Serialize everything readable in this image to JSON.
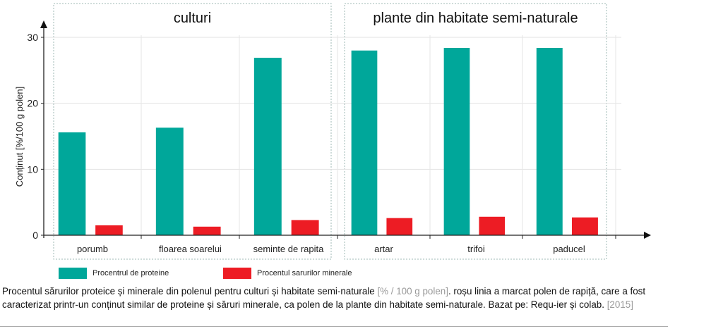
{
  "chart_data": {
    "type": "bar",
    "ylabel": "Conținut [%/100 g polen]",
    "ylim": [
      0,
      30
    ],
    "yticks": [
      0,
      10,
      20,
      30
    ],
    "grid": true,
    "legend_position": "bottom",
    "groups": [
      {
        "title": "culturi",
        "categories": [
          "porumb",
          "floarea soarelui",
          "seminte de rapita"
        ]
      },
      {
        "title": "plante din habitate semi-naturale",
        "categories": [
          "artar",
          "trifoi",
          "paducel"
        ]
      }
    ],
    "categories": [
      "porumb",
      "floarea soarelui",
      "seminte de rapita",
      "artar",
      "trifoi",
      "paducel"
    ],
    "series": [
      {
        "name": "Procentrul de proteine",
        "color": "#00a79a",
        "values": [
          15.6,
          16.3,
          26.9,
          28.0,
          28.4,
          28.4
        ]
      },
      {
        "name": "Procentul sarurilor minerale",
        "color": "#ed1c24",
        "values": [
          1.5,
          1.3,
          2.3,
          2.6,
          2.8,
          2.7
        ]
      }
    ]
  },
  "caption": {
    "text1": "Procentul sărurilor proteice și minerale din polenul pentru culturi și habitate semi-naturale ",
    "ref1": "[% / 100 g polen]",
    "text2": ". roșu linia a marcat polen de rapiță, care a fost caracterizat printr-un conținut similar de proteine și săruri minerale, ca polen de la plante din habitate semi-naturale. Bazat pe: Requ-ier și colab. ",
    "ref2": "[2015]"
  }
}
